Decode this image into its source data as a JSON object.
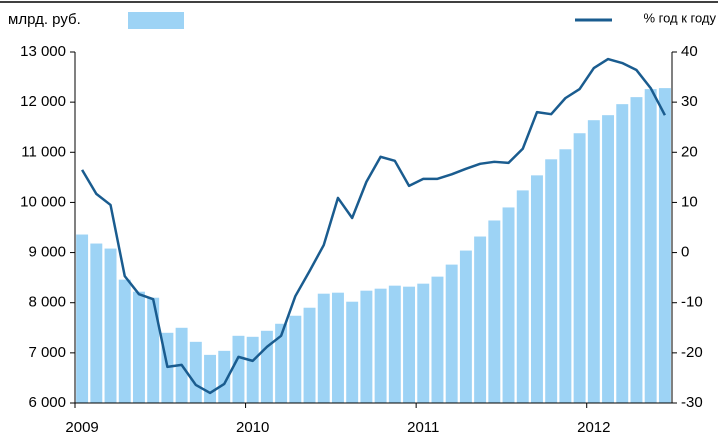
{
  "chart_data": {
    "type": "bar_line",
    "categories": [
      "2009",
      null,
      null,
      null,
      null,
      null,
      null,
      null,
      null,
      null,
      null,
      null,
      "2010",
      null,
      null,
      null,
      null,
      null,
      null,
      null,
      null,
      null,
      null,
      null,
      "2011",
      null,
      null,
      null,
      null,
      null,
      null,
      null,
      null,
      null,
      null,
      null,
      "2012",
      null,
      null,
      null,
      null,
      null
    ],
    "series": [
      {
        "name": "млрд. руб.",
        "color": "#9dd3f5",
        "type": "bar",
        "values": [
          9360,
          9180,
          9080,
          8460,
          8220,
          8100,
          7400,
          7500,
          7220,
          6960,
          7040,
          7340,
          7320,
          7440,
          7580,
          7740,
          7900,
          8180,
          8200,
          8020,
          8240,
          8280,
          8340,
          8320,
          8380,
          8520,
          8760,
          9040,
          9320,
          9640,
          9900,
          10240,
          10540,
          10860,
          11060,
          11380,
          11640,
          11740,
          11960,
          12100,
          12260,
          12280
        ]
      },
      {
        "name": "% год к году",
        "color": "#1a5c8f",
        "type": "line",
        "axis": "y2",
        "values": [
          16.5,
          11.7,
          9.5,
          -4.7,
          -8.3,
          -9.3,
          -22.8,
          -22.4,
          -26.4,
          -28.0,
          -26.2,
          -20.8,
          -21.6,
          -18.8,
          -16.6,
          -8.7,
          -3.7,
          1.5,
          10.9,
          6.9,
          14.1,
          19.1,
          18.3,
          13.3,
          14.7,
          14.7,
          15.6,
          16.7,
          17.7,
          18.1,
          17.9,
          20.7,
          28.0,
          27.6,
          30.8,
          32.6,
          36.8,
          38.6,
          37.8,
          36.4,
          32.8,
          27.4
        ]
      }
    ],
    "ylim": [
      6000,
      13000
    ],
    "yticks": [
      {
        "value": 6000,
        "label": "6 000"
      },
      {
        "value": 7000,
        "label": "7 000"
      },
      {
        "value": 8000,
        "label": "8 000"
      },
      {
        "value": 9000,
        "label": "9 000"
      },
      {
        "value": 10000,
        "label": "10 000"
      },
      {
        "value": 11000,
        "label": "11 000"
      },
      {
        "value": 12000,
        "label": "12 000"
      },
      {
        "value": 13000,
        "label": "13 000"
      }
    ],
    "y2lim": [
      -30,
      40
    ],
    "y2ticks": [
      -30,
      -20,
      -10,
      0,
      10,
      20,
      30,
      40
    ]
  }
}
